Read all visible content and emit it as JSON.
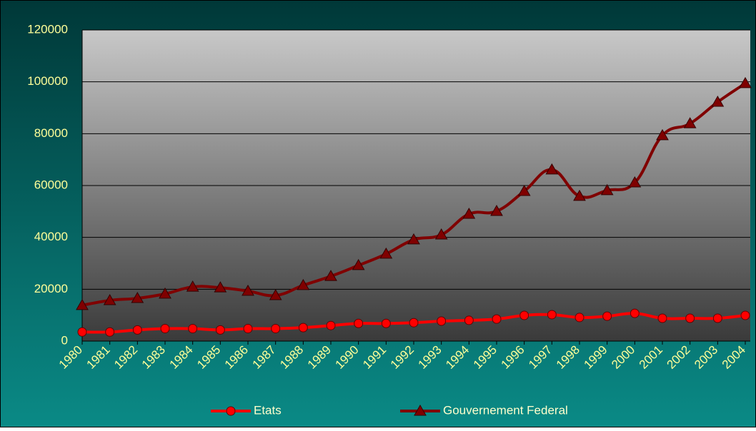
{
  "chart_data": {
    "type": "line",
    "categories": [
      "1980",
      "1981",
      "1982",
      "1983",
      "1984",
      "1985",
      "1986",
      "1987",
      "1988",
      "1989",
      "1990",
      "1991",
      "1992",
      "1993",
      "1994",
      "1995",
      "1996",
      "1997",
      "1998",
      "1999",
      "2000",
      "2001",
      "2002",
      "2003",
      "2004"
    ],
    "series": [
      {
        "name": "Etats",
        "color": "#ff0000",
        "marker": "circle",
        "values": [
          3500,
          3500,
          4300,
          4800,
          4800,
          4300,
          4800,
          4800,
          5200,
          6000,
          6800,
          6800,
          7100,
          7700,
          8000,
          8500,
          9900,
          10200,
          9100,
          9600,
          10700,
          8800,
          8800,
          8800,
          9900
        ]
      },
      {
        "name": "Gouvernement Federal",
        "color": "#800000",
        "marker": "triangle",
        "values": [
          13800,
          15700,
          16500,
          18200,
          20900,
          20600,
          19300,
          17600,
          21500,
          25000,
          29200,
          33600,
          39100,
          41000,
          49000,
          50100,
          57800,
          66100,
          55900,
          58100,
          61100,
          79300,
          83900,
          92200,
          99400
        ]
      }
    ],
    "ylim": [
      0,
      120000
    ],
    "yticks": [
      0,
      20000,
      40000,
      60000,
      80000,
      100000,
      120000
    ],
    "grid": true,
    "legend": "bottom"
  }
}
